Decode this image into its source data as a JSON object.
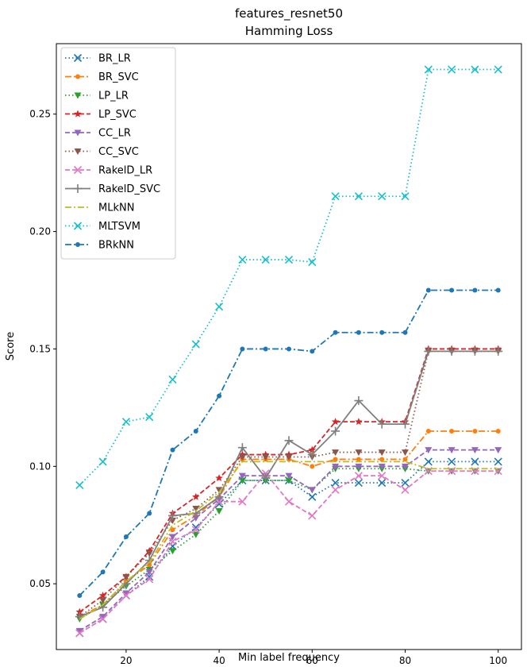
{
  "chart_data": {
    "type": "line",
    "title": [
      "features_resnet50",
      "Hamming Loss"
    ],
    "xlabel": "Min label frequency",
    "ylabel": "Score",
    "x": [
      10,
      15,
      20,
      25,
      30,
      35,
      40,
      45,
      50,
      55,
      60,
      65,
      70,
      75,
      80,
      85,
      90,
      95,
      100
    ],
    "xlim": [
      5,
      105
    ],
    "ylim": [
      0.022,
      0.28
    ],
    "xticks": [
      20,
      40,
      60,
      80,
      100
    ],
    "yticks": [
      "0.05",
      "0.10",
      "0.15",
      "0.20",
      "0.25"
    ],
    "grid": false,
    "legend_loc": "upper left",
    "series": [
      {
        "name": "BR_LR",
        "color": "#1f77b4",
        "dash": "dotted",
        "marker": "x",
        "values": [
          0.029,
          0.035,
          0.045,
          0.053,
          0.066,
          0.074,
          0.084,
          0.094,
          0.094,
          0.094,
          0.087,
          0.093,
          0.093,
          0.093,
          0.093,
          0.102,
          0.102,
          0.102,
          0.102
        ]
      },
      {
        "name": "BR_SVC",
        "color": "#ff7f0e",
        "dash": "dashdot",
        "marker": "dot",
        "values": [
          0.036,
          0.041,
          0.051,
          0.058,
          0.073,
          0.079,
          0.087,
          0.103,
          0.103,
          0.103,
          0.1,
          0.103,
          0.103,
          0.103,
          0.103,
          0.115,
          0.115,
          0.115,
          0.115
        ]
      },
      {
        "name": "LP_LR",
        "color": "#2ca02c",
        "dash": "dotted",
        "marker": "triangle_down",
        "values": [
          0.035,
          0.041,
          0.049,
          0.056,
          0.064,
          0.071,
          0.081,
          0.094,
          0.094,
          0.094,
          0.09,
          0.099,
          0.099,
          0.099,
          0.099,
          0.098,
          0.098,
          0.098,
          0.098
        ]
      },
      {
        "name": "LP_SVC",
        "color": "#d62728",
        "dash": "dashed",
        "marker": "star",
        "values": [
          0.038,
          0.045,
          0.053,
          0.064,
          0.08,
          0.087,
          0.095,
          0.105,
          0.105,
          0.105,
          0.107,
          0.119,
          0.119,
          0.119,
          0.119,
          0.15,
          0.15,
          0.15,
          0.15
        ]
      },
      {
        "name": "CC_LR",
        "color": "#9467bd",
        "dash": "dashed",
        "marker": "triangle_down",
        "values": [
          0.03,
          0.036,
          0.046,
          0.055,
          0.07,
          0.078,
          0.086,
          0.096,
          0.096,
          0.096,
          0.09,
          0.1,
          0.1,
          0.1,
          0.1,
          0.107,
          0.107,
          0.107,
          0.107
        ]
      },
      {
        "name": "CC_SVC",
        "color": "#8c564b",
        "dash": "dotted",
        "marker": "triangle_down",
        "values": [
          0.036,
          0.043,
          0.053,
          0.063,
          0.077,
          0.082,
          0.09,
          0.104,
          0.104,
          0.104,
          0.104,
          0.106,
          0.106,
          0.106,
          0.106,
          0.149,
          0.149,
          0.149,
          0.149
        ]
      },
      {
        "name": "RakelD_LR",
        "color": "#e377c2",
        "dash": "dashed",
        "marker": "x",
        "values": [
          0.029,
          0.035,
          0.045,
          0.052,
          0.068,
          0.073,
          0.085,
          0.085,
          0.097,
          0.085,
          0.079,
          0.09,
          0.096,
          0.096,
          0.09,
          0.098,
          0.098,
          0.098,
          0.098
        ]
      },
      {
        "name": "RakelD_SVC",
        "color": "#7f7f7f",
        "dash": "solid",
        "marker": "plus",
        "values": [
          0.036,
          0.04,
          0.05,
          0.06,
          0.079,
          0.08,
          0.087,
          0.108,
          0.095,
          0.111,
          0.105,
          0.115,
          0.128,
          0.118,
          0.118,
          0.149,
          0.149,
          0.149,
          0.149
        ]
      },
      {
        "name": "MLkNN",
        "color": "#bcbd22",
        "dash": "dashdot",
        "marker": "none",
        "values": [
          0.035,
          0.041,
          0.051,
          0.059,
          0.075,
          0.081,
          0.089,
          0.102,
          0.102,
          0.102,
          0.102,
          0.102,
          0.102,
          0.102,
          0.102,
          0.099,
          0.099,
          0.099,
          0.099
        ]
      },
      {
        "name": "MLTSVM",
        "color": "#17becf",
        "dash": "dotted",
        "marker": "x",
        "values": [
          0.092,
          0.102,
          0.119,
          0.121,
          0.137,
          0.152,
          0.168,
          0.188,
          0.188,
          0.188,
          0.187,
          0.215,
          0.215,
          0.215,
          0.215,
          0.269,
          0.269,
          0.269,
          0.269
        ]
      },
      {
        "name": "BRkNN",
        "color": "#1f77b4",
        "dash": "dashdot",
        "marker": "dot",
        "values": [
          0.045,
          0.055,
          0.07,
          0.08,
          0.107,
          0.115,
          0.13,
          0.15,
          0.15,
          0.15,
          0.149,
          0.157,
          0.157,
          0.157,
          0.157,
          0.175,
          0.175,
          0.175,
          0.175
        ]
      }
    ]
  }
}
